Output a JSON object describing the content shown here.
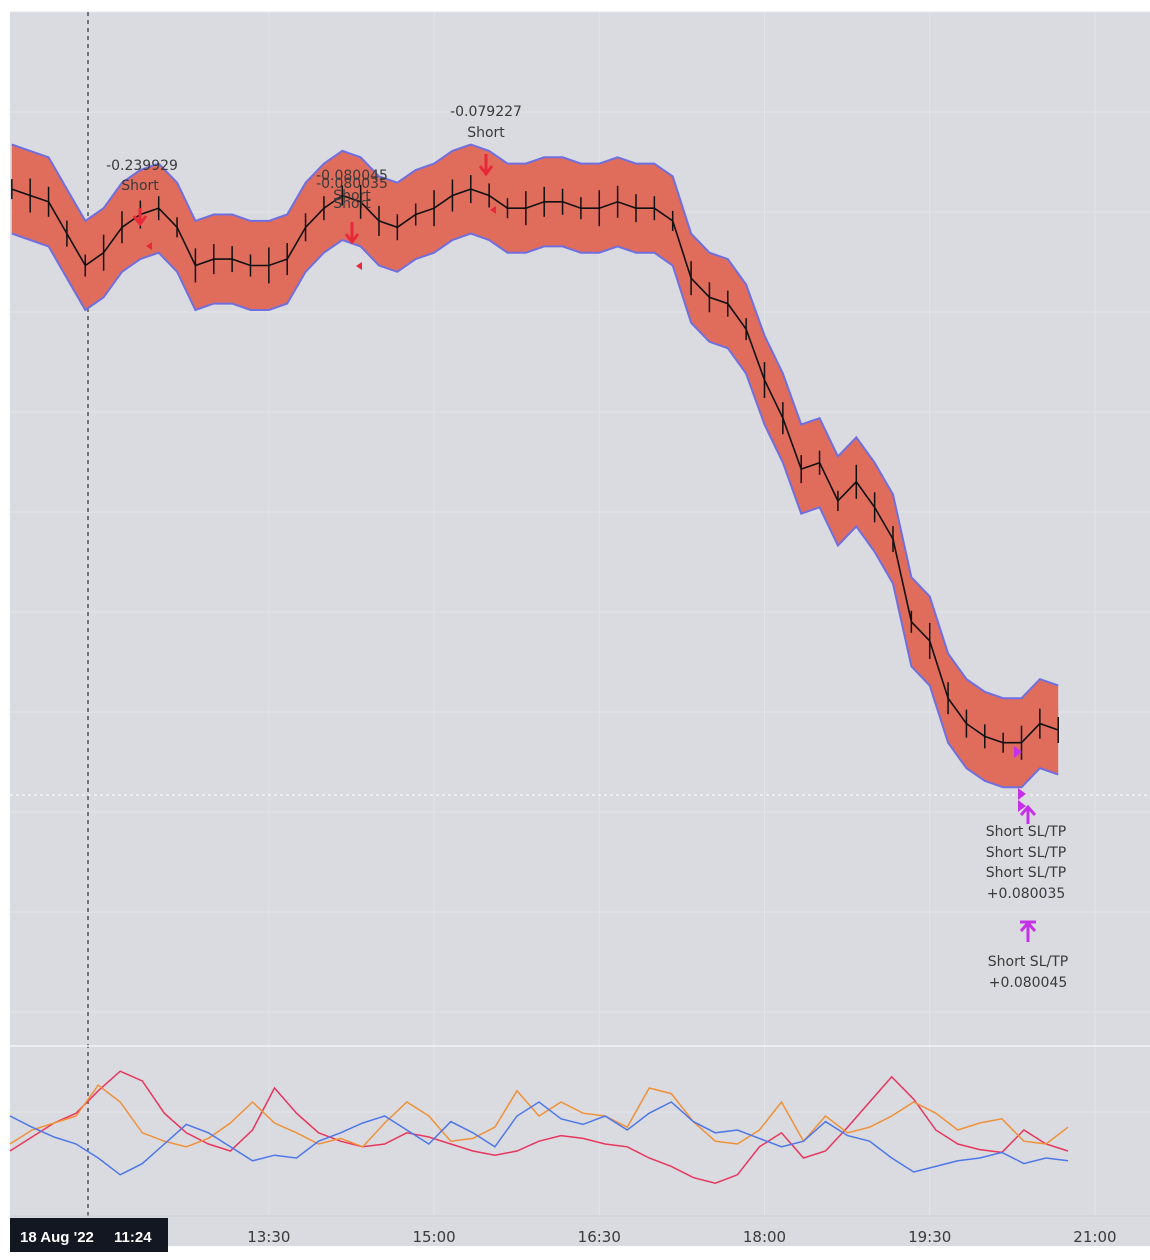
{
  "colors": {
    "background": "#d9dbe0",
    "band_fill": "#e06c5c",
    "band_edge": "#6f6fe0",
    "price": "#111111",
    "short_arrow": "#e8293a",
    "exit_marker": "#c531e8",
    "osc_red": "#e8365d",
    "osc_orange": "#f0913a",
    "osc_blue": "#4f77e8"
  },
  "crosshair": {
    "date": "18 Aug '22",
    "time": "11:24"
  },
  "chart_data": {
    "type": "line",
    "x_ticks": [
      "13:30",
      "15:00",
      "16:30",
      "18:00",
      "19:30",
      "21:00"
    ],
    "xlim": [
      "11:09",
      "21:30"
    ],
    "series": [
      {
        "x": [
          "11:10",
          "11:20",
          "11:30",
          "11:40",
          "11:50",
          "12:00",
          "12:10",
          "12:20",
          "12:30",
          "12:40",
          "12:50",
          "13:00",
          "13:10",
          "13:20",
          "13:30",
          "13:40",
          "13:50",
          "14:00",
          "14:10",
          "14:20",
          "14:30",
          "14:40",
          "14:50",
          "15:00",
          "15:10",
          "15:20",
          "15:30",
          "15:40",
          "15:50",
          "16:00",
          "16:10",
          "16:20",
          "16:30",
          "16:40",
          "16:50",
          "17:00",
          "17:10",
          "17:20",
          "17:30",
          "17:40",
          "17:50",
          "18:00",
          "18:10",
          "18:20",
          "18:30",
          "18:40",
          "18:50",
          "19:00",
          "19:10",
          "19:20",
          "19:30",
          "19:40",
          "19:50",
          "20:00",
          "20:10",
          "20:20",
          "20:30",
          "20:40"
        ],
        "close": [
          96,
          95,
          94,
          89,
          84,
          86,
          90,
          92,
          93,
          90,
          84,
          85,
          85,
          84,
          84,
          85,
          90,
          93,
          95,
          94,
          91,
          90,
          92,
          93,
          95,
          96,
          95,
          93,
          93,
          94,
          94,
          93,
          93,
          94,
          93,
          93,
          91,
          82,
          79,
          78,
          74,
          66,
          60,
          52,
          53,
          47,
          50,
          46,
          41,
          28,
          25,
          16,
          12,
          10,
          9,
          9,
          12,
          11
        ],
        "band_upper": [
          103,
          102,
          101,
          96,
          91,
          93,
          97,
          99,
          100,
          97,
          91,
          92,
          92,
          91,
          91,
          92,
          97,
          100,
          102,
          101,
          98,
          97,
          99,
          100,
          102,
          103,
          102,
          100,
          100,
          101,
          101,
          100,
          100,
          101,
          100,
          100,
          98,
          89,
          86,
          85,
          81,
          73,
          67,
          59,
          60,
          54,
          57,
          53,
          48,
          35,
          32,
          23,
          19,
          17,
          16,
          16,
          19,
          18
        ],
        "band_lower": [
          89,
          88,
          87,
          82,
          77,
          79,
          83,
          85,
          86,
          83,
          77,
          78,
          78,
          77,
          77,
          78,
          83,
          86,
          88,
          87,
          84,
          83,
          85,
          86,
          88,
          89,
          88,
          86,
          86,
          87,
          87,
          86,
          86,
          87,
          86,
          86,
          84,
          75,
          72,
          71,
          67,
          59,
          53,
          45,
          46,
          40,
          43,
          39,
          34,
          21,
          18,
          9,
          5,
          3,
          2,
          2,
          5,
          4
        ]
      }
    ],
    "annotations": [
      {
        "time": "11:53",
        "label": "-0.239929",
        "signal": "Short"
      },
      {
        "time": "14:15",
        "label": "-0.080045",
        "signal": "Short"
      },
      {
        "time": "14:15",
        "label": "-0.080035",
        "signal": "Short"
      },
      {
        "time": "15:16",
        "label": "-0.079227",
        "signal": "Short"
      },
      {
        "time": "20:24",
        "label": "Short SL/TP",
        "signal": ""
      },
      {
        "time": "20:24",
        "label": "Short SL/TP",
        "signal": ""
      },
      {
        "time": "20:24",
        "label": "Short SL/TP",
        "signal": "+0.080035"
      },
      {
        "time": "20:24",
        "label": "Short SL/TP",
        "signal": "+0.080045"
      }
    ],
    "oscillators": [
      {
        "color": "red",
        "values": [
          35,
          45,
          55,
          62,
          78,
          92,
          85,
          62,
          48,
          40,
          35,
          50,
          80,
          62,
          48,
          42,
          38,
          40,
          48,
          45,
          40,
          35,
          32,
          35,
          42,
          46,
          44,
          40,
          38,
          30,
          24,
          16,
          12,
          18,
          38,
          48,
          30,
          35,
          52,
          70,
          88,
          72,
          50,
          40,
          36,
          34,
          50,
          40,
          35
        ]
      },
      {
        "color": "orange",
        "values": [
          40,
          50,
          55,
          60,
          82,
          70,
          48,
          42,
          38,
          44,
          55,
          70,
          55,
          48,
          40,
          44,
          38,
          55,
          70,
          60,
          42,
          44,
          52,
          78,
          60,
          70,
          62,
          60,
          52,
          80,
          76,
          56,
          42,
          40,
          50,
          70,
          42,
          60,
          48,
          52,
          60,
          70,
          62,
          50,
          55,
          58,
          42,
          40,
          52
        ]
      },
      {
        "color": "blue",
        "values": [
          60,
          52,
          45,
          40,
          30,
          18,
          26,
          40,
          54,
          48,
          38,
          28,
          32,
          30,
          42,
          48,
          55,
          60,
          50,
          40,
          56,
          48,
          38,
          60,
          70,
          58,
          54,
          60,
          50,
          62,
          70,
          56,
          48,
          50,
          44,
          38,
          42,
          56,
          46,
          42,
          30,
          20,
          24,
          28,
          30,
          34,
          26,
          30,
          28
        ]
      }
    ]
  }
}
